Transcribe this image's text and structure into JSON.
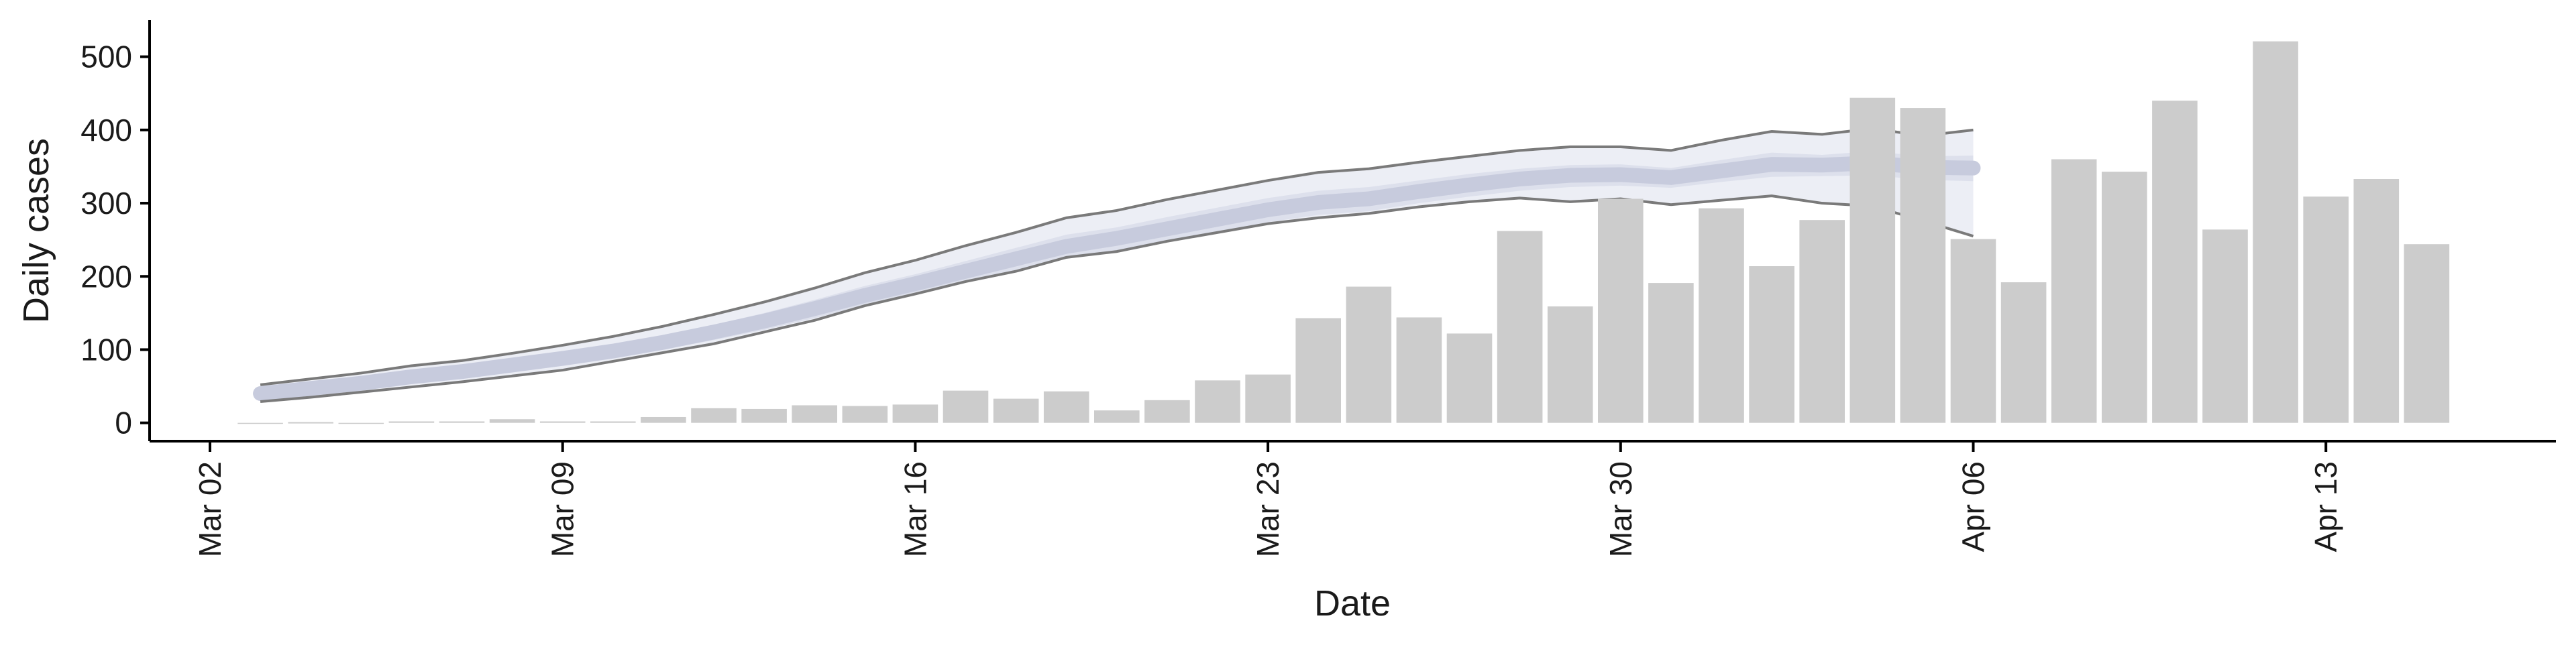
{
  "chart_data": {
    "type": "bar",
    "xlabel": "Date",
    "ylabel": "Daily cases",
    "ylim": [
      -25,
      550
    ],
    "yticks": [
      0,
      100,
      200,
      300,
      400,
      500
    ],
    "xticks": [
      "Mar 02",
      "Mar 09",
      "Mar 16",
      "Mar 23",
      "Mar 30",
      "Apr 06",
      "Apr 13"
    ],
    "grid": false,
    "legend": "none",
    "colors": {
      "bars": "#cccccc",
      "band_outer": "#eceef5",
      "band_inner": "#dde0ec",
      "band_median": "#c7cbdd",
      "band_edge": "#7a7a7a",
      "axis": "#000000"
    },
    "x": [
      "Mar 03",
      "Mar 04",
      "Mar 05",
      "Mar 06",
      "Mar 07",
      "Mar 08",
      "Mar 09",
      "Mar 10",
      "Mar 11",
      "Mar 12",
      "Mar 13",
      "Mar 14",
      "Mar 15",
      "Mar 16",
      "Mar 17",
      "Mar 18",
      "Mar 19",
      "Mar 20",
      "Mar 21",
      "Mar 22",
      "Mar 23",
      "Mar 24",
      "Mar 25",
      "Mar 26",
      "Mar 27",
      "Mar 28",
      "Mar 29",
      "Mar 30",
      "Mar 31",
      "Apr 01",
      "Apr 02",
      "Apr 03",
      "Apr 04",
      "Apr 05",
      "Apr 06",
      "Apr 07",
      "Apr 08",
      "Apr 09",
      "Apr 10",
      "Apr 11",
      "Apr 12",
      "Apr 13",
      "Apr 14",
      "Apr 15"
    ],
    "series": [
      {
        "values": [
          0,
          1,
          0,
          2,
          2,
          5,
          2,
          2,
          8,
          20,
          19,
          24,
          23,
          25,
          44,
          33,
          43,
          17,
          31,
          58,
          66,
          143,
          186,
          144,
          122,
          262,
          159,
          306,
          191,
          293,
          214,
          277,
          444,
          430,
          251,
          192,
          360,
          343,
          440,
          264,
          521,
          309,
          333,
          244
        ]
      }
    ],
    "projection": {
      "x": [
        "Mar 03",
        "Mar 04",
        "Mar 05",
        "Mar 06",
        "Mar 07",
        "Mar 08",
        "Mar 09",
        "Mar 10",
        "Mar 11",
        "Mar 12",
        "Mar 13",
        "Mar 14",
        "Mar 15",
        "Mar 16",
        "Mar 17",
        "Mar 18",
        "Mar 19",
        "Mar 20",
        "Mar 21",
        "Mar 22",
        "Mar 23",
        "Mar 24",
        "Mar 25",
        "Mar 26",
        "Mar 27",
        "Mar 28",
        "Mar 29",
        "Mar 30",
        "Mar 31",
        "Apr 01",
        "Apr 02",
        "Apr 03",
        "Apr 04",
        "Apr 05",
        "Apr 06"
      ],
      "upper": [
        52,
        60,
        68,
        78,
        85,
        95,
        106,
        118,
        132,
        148,
        165,
        184,
        205,
        222,
        242,
        260,
        280,
        290,
        305,
        318,
        331,
        342,
        347,
        356,
        364,
        372,
        377,
        377,
        372,
        386,
        398,
        394,
        402,
        392,
        400
      ],
      "upper_inner": [
        44,
        52,
        59,
        69,
        76,
        85,
        95,
        106,
        119,
        134,
        150,
        168,
        187,
        203,
        221,
        239,
        257,
        267,
        281,
        294,
        307,
        317,
        322,
        331,
        340,
        347,
        352,
        353,
        348,
        359,
        369,
        366,
        371,
        364,
        365
      ],
      "median": [
        40,
        47,
        54,
        63,
        70,
        79,
        88,
        98,
        110,
        124,
        139,
        156,
        174,
        190,
        207,
        224,
        241,
        252,
        265,
        278,
        291,
        301,
        306,
        316,
        325,
        333,
        338,
        339,
        335,
        344,
        353,
        352,
        355,
        349,
        348
      ],
      "lower_inner": [
        36,
        42,
        48,
        57,
        63,
        72,
        80,
        89,
        100,
        113,
        127,
        143,
        160,
        176,
        192,
        208,
        224,
        236,
        248,
        261,
        274,
        284,
        289,
        300,
        309,
        317,
        322,
        324,
        321,
        329,
        336,
        337,
        338,
        332,
        330
      ],
      "lower": [
        29,
        35,
        42,
        49,
        56,
        64,
        72,
        84,
        96,
        108,
        124,
        140,
        160,
        176,
        193,
        207,
        226,
        234,
        248,
        260,
        272,
        280,
        286,
        295,
        302,
        307,
        302,
        306,
        298,
        304,
        310,
        300,
        296,
        276,
        255
      ]
    }
  }
}
